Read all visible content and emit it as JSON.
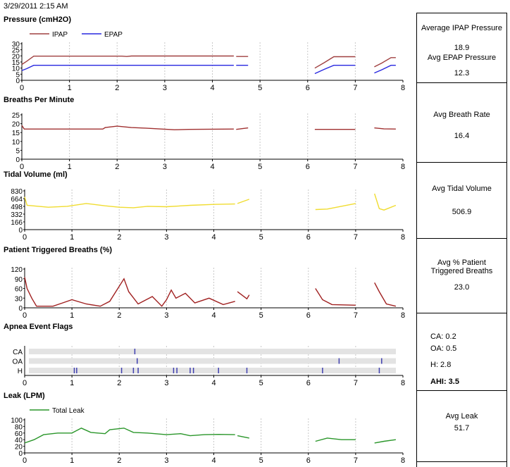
{
  "header": {
    "date": "3/29/2011 2:15 AM"
  },
  "colors": {
    "ipap": "#a04040",
    "epap": "#2828e0",
    "bpm": "#a03030",
    "tidal": "#f0dc30",
    "trig": "#a02020",
    "leak": "#2a962a",
    "flag": "#4040b0",
    "flag_band": "#e3e3e3",
    "grid": "#c8c8c8"
  },
  "chart_data": [
    {
      "id": "pressure",
      "type": "line",
      "title": "Pressure (cmH2O)",
      "xlabel": "",
      "ylabel": "",
      "xlim": [
        0,
        8
      ],
      "ylim": [
        0,
        30
      ],
      "x_ticks": [
        0,
        1,
        2,
        3,
        4,
        5,
        6,
        7,
        8
      ],
      "y_ticks": [
        "0",
        "5",
        "10",
        "15",
        "20",
        "25",
        "30"
      ],
      "legend_position": "top-left",
      "grid": "vertical",
      "series": [
        {
          "name": "IPAP",
          "color": "#a04040",
          "segments": [
            [
              [
                0,
                13
              ],
              [
                0.1,
                15.5
              ],
              [
                0.25,
                19.8
              ],
              [
                2.1,
                19.8
              ],
              [
                2.2,
                19.5
              ],
              [
                2.3,
                19.9
              ],
              [
                4.45,
                19.9
              ]
            ],
            [
              [
                4.5,
                19.5
              ],
              [
                4.75,
                19.5
              ]
            ],
            [
              [
                6.15,
                10
              ],
              [
                6.35,
                14.5
              ],
              [
                6.55,
                19.3
              ],
              [
                7.0,
                19.3
              ]
            ],
            [
              [
                7.4,
                11
              ],
              [
                7.55,
                14
              ],
              [
                7.75,
                18.6
              ],
              [
                7.85,
                18.6
              ]
            ]
          ]
        },
        {
          "name": "EPAP",
          "color": "#2828e0",
          "segments": [
            [
              [
                0,
                8
              ],
              [
                0.1,
                9.5
              ],
              [
                0.25,
                12.3
              ],
              [
                4.45,
                12.3
              ]
            ],
            [
              [
                4.5,
                12.3
              ],
              [
                4.75,
                12.3
              ]
            ],
            [
              [
                6.15,
                5.5
              ],
              [
                6.35,
                9
              ],
              [
                6.55,
                12.3
              ],
              [
                7.0,
                12.3
              ]
            ],
            [
              [
                7.4,
                6
              ],
              [
                7.55,
                8.5
              ],
              [
                7.75,
                12.3
              ],
              [
                7.85,
                12.3
              ]
            ]
          ]
        }
      ]
    },
    {
      "id": "bpm",
      "type": "line",
      "title": "Breaths Per Minute",
      "xlabel": "",
      "ylabel": "",
      "xlim": [
        0,
        8
      ],
      "ylim": [
        0,
        25
      ],
      "x_ticks": [
        0,
        1,
        2,
        3,
        4,
        5,
        6,
        7,
        8
      ],
      "y_ticks": [
        "0",
        "5",
        "10",
        "15",
        "20",
        "25"
      ],
      "grid": "vertical",
      "series": [
        {
          "name": "",
          "color": "#a03030",
          "segments": [
            [
              [
                0,
                19
              ],
              [
                0.05,
                17
              ],
              [
                1.7,
                17
              ],
              [
                1.75,
                17.8
              ],
              [
                2.0,
                18.6
              ],
              [
                2.3,
                17.8
              ],
              [
                2.6,
                17.5
              ],
              [
                3.2,
                16.6
              ],
              [
                3.5,
                16.8
              ],
              [
                4.45,
                17
              ]
            ],
            [
              [
                4.5,
                16.8
              ],
              [
                4.75,
                17.6
              ]
            ],
            [
              [
                6.15,
                16.8
              ],
              [
                6.5,
                16.8
              ],
              [
                7.0,
                16.8
              ]
            ],
            [
              [
                7.4,
                17.6
              ],
              [
                7.6,
                17.1
              ],
              [
                7.85,
                17
              ]
            ]
          ]
        }
      ]
    },
    {
      "id": "tidal",
      "type": "line",
      "title": "Tidal Volume (ml)",
      "xlabel": "",
      "ylabel": "",
      "xlim": [
        0,
        8
      ],
      "ylim": [
        0,
        830
      ],
      "x_ticks": [
        0,
        1,
        2,
        3,
        4,
        5,
        6,
        7,
        8
      ],
      "y_ticks": [
        "0",
        "166",
        "332",
        "498",
        "664",
        "830"
      ],
      "grid": "vertical",
      "series": [
        {
          "name": "",
          "color": "#f0dc30",
          "segments": [
            [
              [
                0,
                700
              ],
              [
                0.05,
                520
              ],
              [
                0.5,
                480
              ],
              [
                0.9,
                500
              ],
              [
                1.3,
                560
              ],
              [
                1.7,
                510
              ],
              [
                2.0,
                480
              ],
              [
                2.3,
                470
              ],
              [
                2.6,
                500
              ],
              [
                3.0,
                490
              ],
              [
                3.5,
                520
              ],
              [
                4.0,
                540
              ],
              [
                4.45,
                550
              ]
            ],
            [
              [
                4.5,
                560
              ],
              [
                4.75,
                650
              ]
            ],
            [
              [
                6.15,
                430
              ],
              [
                6.4,
                440
              ],
              [
                6.6,
                480
              ],
              [
                7.0,
                560
              ]
            ],
            [
              [
                7.4,
                770
              ],
              [
                7.5,
                450
              ],
              [
                7.6,
                420
              ],
              [
                7.85,
                520
              ]
            ]
          ]
        }
      ]
    },
    {
      "id": "trigger",
      "type": "line",
      "title": "Patient Triggered Breaths (%)",
      "xlabel": "",
      "ylabel": "",
      "xlim": [
        0,
        8
      ],
      "ylim": [
        0,
        120
      ],
      "x_ticks": [
        0,
        1,
        2,
        3,
        4,
        5,
        6,
        7,
        8
      ],
      "y_ticks": [
        "0",
        "30",
        "60",
        "90",
        "120"
      ],
      "grid": "vertical",
      "series": [
        {
          "name": "",
          "color": "#a02020",
          "segments": [
            [
              [
                0,
                95
              ],
              [
                0.05,
                60
              ],
              [
                0.15,
                30
              ],
              [
                0.25,
                5
              ],
              [
                0.6,
                5
              ],
              [
                0.8,
                15
              ],
              [
                1.0,
                25
              ],
              [
                1.3,
                12
              ],
              [
                1.6,
                5
              ],
              [
                1.8,
                20
              ],
              [
                1.95,
                55
              ],
              [
                2.1,
                90
              ],
              [
                2.2,
                50
              ],
              [
                2.4,
                12
              ],
              [
                2.7,
                35
              ],
              [
                2.9,
                5
              ],
              [
                3.0,
                25
              ],
              [
                3.1,
                55
              ],
              [
                3.2,
                30
              ],
              [
                3.4,
                45
              ],
              [
                3.6,
                15
              ],
              [
                3.9,
                30
              ],
              [
                4.2,
                10
              ],
              [
                4.45,
                20
              ]
            ],
            [
              [
                4.5,
                50
              ],
              [
                4.7,
                28
              ],
              [
                4.75,
                40
              ]
            ],
            [
              [
                6.15,
                60
              ],
              [
                6.3,
                25
              ],
              [
                6.5,
                10
              ],
              [
                7.0,
                8
              ]
            ],
            [
              [
                7.4,
                78
              ],
              [
                7.5,
                50
              ],
              [
                7.65,
                12
              ],
              [
                7.85,
                5
              ]
            ]
          ]
        }
      ]
    },
    {
      "id": "apnea",
      "type": "scatter",
      "title": "Apnea Event Flags",
      "xlabel": "",
      "ylabel": "",
      "xlim": [
        0,
        8
      ],
      "x_ticks": [
        0,
        1,
        2,
        3,
        4,
        5,
        6,
        7,
        8
      ],
      "categories": [
        "CA",
        "OA",
        "H"
      ],
      "grid": "vertical",
      "events": [
        {
          "type": "CA",
          "x": [
            2.33
          ]
        },
        {
          "type": "OA",
          "x": [
            2.38,
            6.65,
            7.55
          ]
        },
        {
          "type": "H",
          "x": [
            1.05,
            1.1,
            2.05,
            2.3,
            2.4,
            3.15,
            3.22,
            3.5,
            3.57,
            4.1,
            4.7,
            6.3,
            7.5
          ]
        }
      ]
    },
    {
      "id": "leak",
      "type": "line",
      "title": "Leak (LPM)",
      "xlabel": "",
      "ylabel": "",
      "xlim": [
        0,
        8
      ],
      "ylim": [
        0,
        100
      ],
      "x_ticks": [
        0,
        1,
        2,
        3,
        4,
        5,
        6,
        7,
        8
      ],
      "y_ticks": [
        "0",
        "20",
        "40",
        "60",
        "80",
        "100"
      ],
      "legend_position": "top-left",
      "grid": "vertical",
      "series": [
        {
          "name": "Total Leak",
          "color": "#2a962a",
          "segments": [
            [
              [
                0,
                30
              ],
              [
                0.2,
                40
              ],
              [
                0.4,
                55
              ],
              [
                0.7,
                60
              ],
              [
                1.0,
                60
              ],
              [
                1.2,
                75
              ],
              [
                1.4,
                62
              ],
              [
                1.7,
                58
              ],
              [
                1.8,
                70
              ],
              [
                2.1,
                75
              ],
              [
                2.3,
                62
              ],
              [
                2.6,
                60
              ],
              [
                3.0,
                55
              ],
              [
                3.3,
                58
              ],
              [
                3.5,
                52
              ],
              [
                3.8,
                55
              ],
              [
                4.1,
                56
              ],
              [
                4.45,
                55
              ]
            ],
            [
              [
                4.5,
                52
              ],
              [
                4.75,
                45
              ]
            ],
            [
              [
                6.15,
                35
              ],
              [
                6.4,
                45
              ],
              [
                6.7,
                40
              ],
              [
                7.0,
                40
              ]
            ],
            [
              [
                7.4,
                30
              ],
              [
                7.6,
                35
              ],
              [
                7.85,
                40
              ]
            ]
          ]
        }
      ]
    }
  ],
  "summary": {
    "ipap_label": "Average IPAP Pressure",
    "ipap_value": "18.9",
    "epap_label": "Avg EPAP Pressure",
    "epap_value": "12.3",
    "bpm_label": "Avg Breath Rate",
    "bpm_value": "16.4",
    "tidal_label": "Avg Tidal Volume",
    "tidal_value": "506.9",
    "trig_label": "Avg % Patient Triggered Breaths",
    "trig_value": "23.0",
    "ca_line": "CA:  0.2",
    "oa_line": "OA:  0.5",
    "h_line": "H:    2.8",
    "ahi_line": "AHI: 3.5",
    "leak_label": "Avg Leak",
    "leak_value": "51.7"
  }
}
